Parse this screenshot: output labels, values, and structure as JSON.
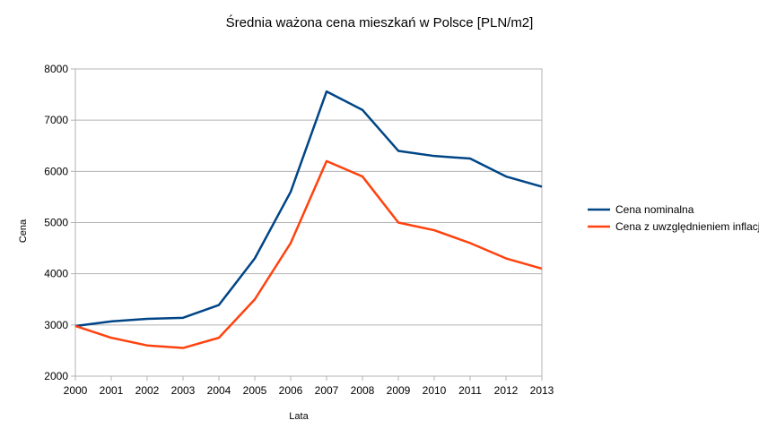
{
  "chart_data": {
    "type": "line",
    "title": "Średnia ważona cena mieszkań w Polsce [PLN/m2]",
    "xlabel": "Lata",
    "ylabel": "Cena",
    "x": [
      "2000",
      "2001",
      "2002",
      "2003",
      "2004",
      "2005",
      "2006",
      "2007",
      "2008",
      "2009",
      "2010",
      "2011",
      "2012",
      "2013"
    ],
    "ylim": [
      2000,
      8000
    ],
    "yticks": [
      "2000",
      "3000",
      "4000",
      "5000",
      "6000",
      "7000",
      "8000"
    ],
    "grid": true,
    "legend_position": "right",
    "series": [
      {
        "name": "Cena nominalna",
        "color": "#004586",
        "values": [
          2980,
          3070,
          3120,
          3140,
          3390,
          4300,
          5600,
          7560,
          7200,
          6400,
          6300,
          6250,
          5900,
          5700
        ]
      },
      {
        "name": "Cena z uwzględnieniem inflacji",
        "color": "#ff420e",
        "values": [
          2980,
          2750,
          2600,
          2550,
          2750,
          3500,
          4600,
          6200,
          5900,
          5000,
          4850,
          4600,
          4300,
          4100
        ]
      }
    ]
  }
}
